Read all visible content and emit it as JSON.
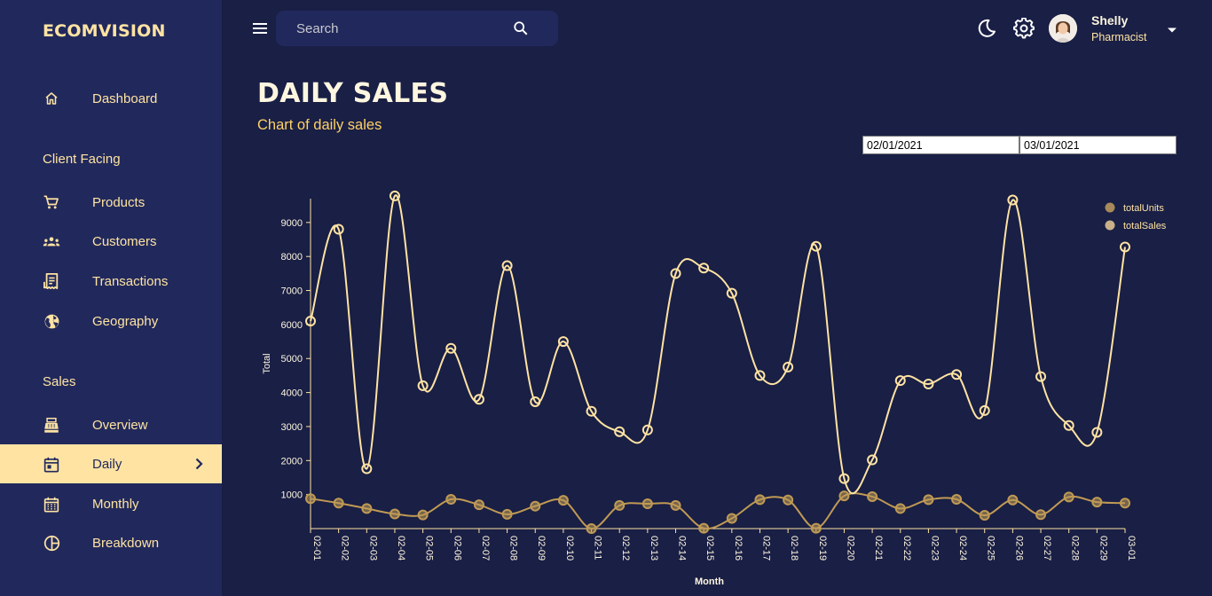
{
  "brand": "ECOMVISION",
  "sidebar": {
    "items": [
      {
        "label": "Dashboard",
        "icon": "home-outline-icon"
      },
      {
        "section": "Client Facing"
      },
      {
        "label": "Products",
        "icon": "shopping-cart-icon"
      },
      {
        "label": "Customers",
        "icon": "groups-icon"
      },
      {
        "label": "Transactions",
        "icon": "receipt-icon"
      },
      {
        "label": "Geography",
        "icon": "globe-icon"
      },
      {
        "section": "Sales"
      },
      {
        "label": "Overview",
        "icon": "point-of-sale-icon"
      },
      {
        "label": "Daily",
        "icon": "calendar-today-icon",
        "active": true
      },
      {
        "label": "Monthly",
        "icon": "calendar-month-icon"
      },
      {
        "label": "Breakdown",
        "icon": "pie-chart-icon"
      }
    ]
  },
  "topbar": {
    "search_placeholder": "Search",
    "user_name": "Shelly",
    "user_role": "Pharmacist"
  },
  "page": {
    "title": "DAILY SALES",
    "subtitle": "Chart of daily sales",
    "start_date": "02/01/2021",
    "end_date": "03/01/2021"
  },
  "colors": {
    "background": "#191f45",
    "sidebar": "#21295c",
    "accent": "#ffe3a3",
    "totalUnits": "#c09a54",
    "totalSales": "#ffe3a3"
  },
  "chart_data": {
    "type": "line",
    "xlabel": "Month",
    "ylabel": "Total",
    "ylim": [
      0,
      9700
    ],
    "y_ticks": [
      1000,
      2000,
      3000,
      4000,
      5000,
      6000,
      7000,
      8000,
      9000
    ],
    "categories": [
      "02-01",
      "02-02",
      "02-03",
      "02-04",
      "02-05",
      "02-06",
      "02-07",
      "02-08",
      "02-09",
      "02-10",
      "02-11",
      "02-12",
      "02-13",
      "02-14",
      "02-15",
      "02-16",
      "02-17",
      "02-18",
      "02-19",
      "02-20",
      "02-21",
      "02-22",
      "02-23",
      "02-24",
      "02-25",
      "02-26",
      "02-27",
      "02-28",
      "02-29",
      "03-01"
    ],
    "legend_position": "top-right",
    "series": [
      {
        "name": "totalUnits",
        "color": "#c09a54",
        "values": [
          880,
          750,
          590,
          430,
          400,
          860,
          700,
          420,
          660,
          830,
          0,
          680,
          730,
          680,
          10,
          300,
          850,
          840,
          10,
          960,
          940,
          590,
          850,
          860,
          390,
          840,
          410,
          930,
          780,
          750
        ]
      },
      {
        "name": "totalSales",
        "color": "#ffe3a3",
        "values": [
          6100,
          8800,
          1760,
          9780,
          4200,
          5300,
          3800,
          7730,
          3730,
          5500,
          3450,
          2850,
          2900,
          7500,
          7660,
          6920,
          4500,
          4750,
          8300,
          1470,
          2020,
          4350,
          4250,
          4530,
          3470,
          9660,
          4470,
          3030,
          2830,
          8280
        ]
      }
    ]
  }
}
